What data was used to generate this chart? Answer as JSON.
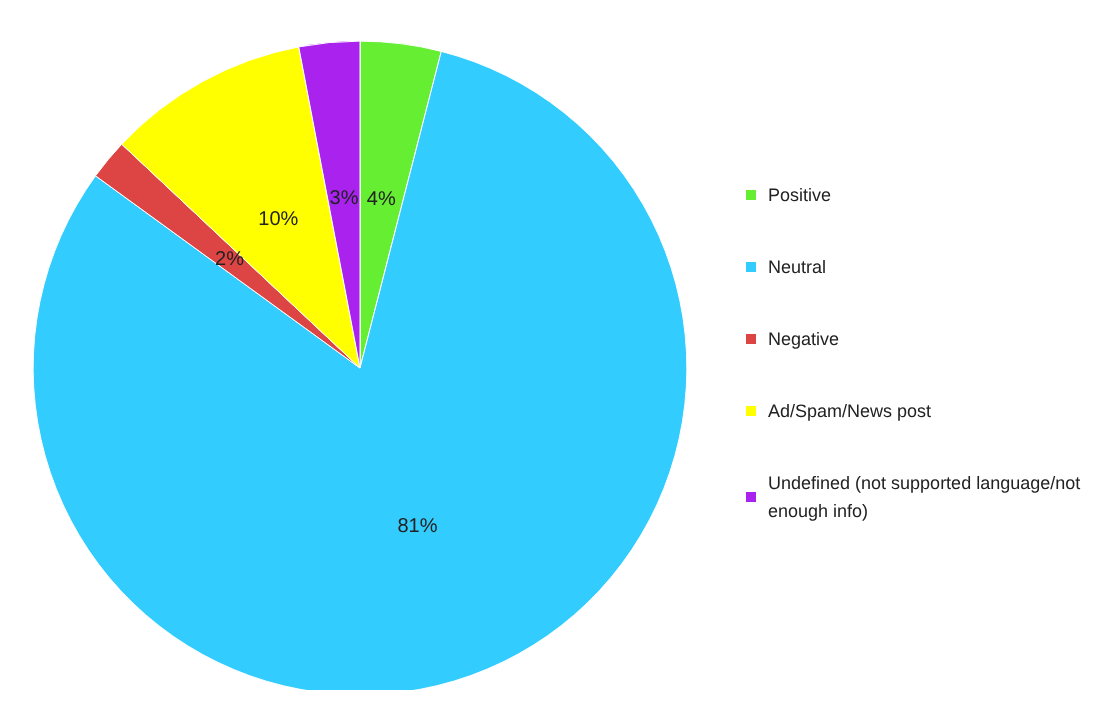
{
  "chart_data": {
    "type": "pie",
    "categories": [
      "Positive",
      "Neutral",
      "Negative",
      "Ad/Spam/News post",
      "Undefined (not supported language/not enough info)"
    ],
    "values": [
      4,
      81,
      2,
      10,
      3
    ],
    "colors": [
      "#66ee33",
      "#33ccff",
      "#dd4444",
      "#ffff00",
      "#aa22ee"
    ],
    "value_labels": [
      "4%",
      "81%",
      "2%",
      "10%",
      "3%"
    ],
    "legend": "right"
  }
}
